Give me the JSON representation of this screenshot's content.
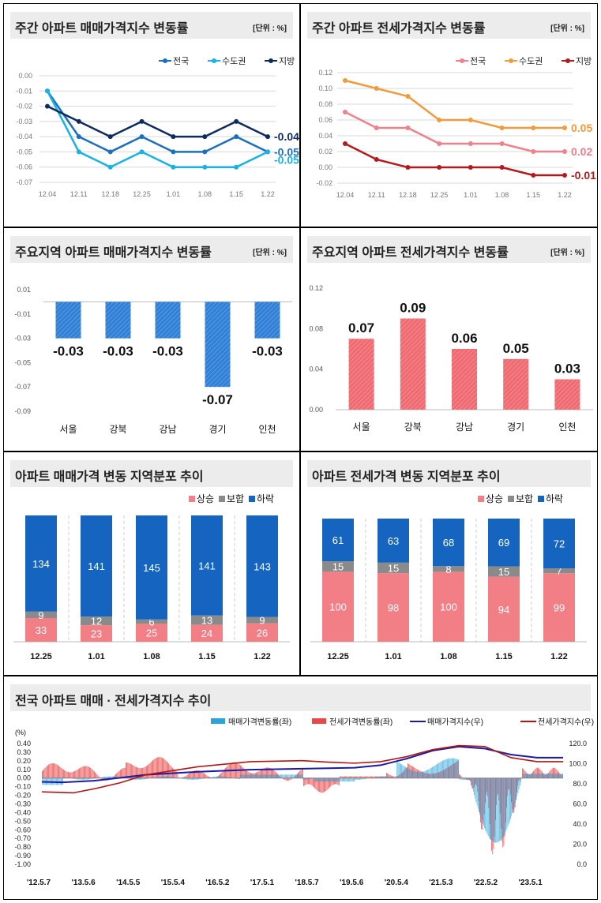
{
  "colors": {
    "national": "#1a6fbf",
    "capital": "#17b2e8",
    "local": "#0d2b5e",
    "j_national": "#f0808a",
    "j_capital": "#f39a3c",
    "j_local": "#b51a1a",
    "bar_blue": "#2f80d6",
    "bar_red": "#f06a72",
    "rise": "#f37f86",
    "flat": "#8a8a8a",
    "fall": "#1565c0"
  },
  "chart_data": [
    {
      "type": "line",
      "title": "주간 아파트 매매가격지수 변동률",
      "unit": "[단위 : %]",
      "categories": [
        "12.04",
        "12.11",
        "12.18",
        "12.25",
        "1.01",
        "1.08",
        "1.15",
        "1.22"
      ],
      "ylim": [
        -0.07,
        0.0
      ],
      "yticks": [
        "0.00",
        "-0.01",
        "-0.02",
        "-0.03",
        "-0.04",
        "-0.05",
        "-0.06",
        "-0.07"
      ],
      "series": [
        {
          "name": "전국",
          "values": [
            -0.01,
            -0.04,
            -0.05,
            -0.04,
            -0.05,
            -0.05,
            -0.04,
            -0.05
          ],
          "end_label": "-0.05"
        },
        {
          "name": "수도권",
          "values": [
            -0.01,
            -0.05,
            -0.06,
            -0.05,
            -0.06,
            -0.06,
            -0.06,
            -0.05
          ],
          "end_label": "-0.05"
        },
        {
          "name": "지방",
          "values": [
            -0.02,
            -0.03,
            -0.04,
            -0.03,
            -0.04,
            -0.04,
            -0.03,
            -0.04
          ],
          "end_label": "-0.04"
        }
      ]
    },
    {
      "type": "line",
      "title": "주간 아파트 전세가격지수 변동률",
      "unit": "[단위 : %]",
      "categories": [
        "12.04",
        "12.11",
        "12.18",
        "12.25",
        "1.01",
        "1.08",
        "1.15",
        "1.22"
      ],
      "ylim": [
        -0.02,
        0.12
      ],
      "yticks": [
        "0.12",
        "0.10",
        "0.08",
        "0.06",
        "0.04",
        "0.02",
        "0.00",
        "-0.02"
      ],
      "series": [
        {
          "name": "전국",
          "values": [
            0.07,
            0.05,
            0.05,
            0.03,
            0.03,
            0.03,
            0.02,
            0.02
          ],
          "end_label": "0.02"
        },
        {
          "name": "수도권",
          "values": [
            0.11,
            0.1,
            0.09,
            0.06,
            0.06,
            0.05,
            0.05,
            0.05
          ],
          "end_label": "0.05"
        },
        {
          "name": "지방",
          "values": [
            0.03,
            0.01,
            0.0,
            0.0,
            0.0,
            0.0,
            -0.01,
            -0.01
          ],
          "end_label": "-0.01"
        }
      ]
    },
    {
      "type": "bar",
      "title": "주요지역 아파트 매매가격지수 변동률",
      "unit": "[단위 : %]",
      "categories": [
        "서울",
        "강북",
        "강남",
        "경기",
        "인천"
      ],
      "values": [
        -0.03,
        -0.03,
        -0.03,
        -0.07,
        -0.03
      ],
      "labels": [
        "-0.03",
        "-0.03",
        "-0.03",
        "-0.07",
        "-0.03"
      ],
      "ylim": [
        -0.09,
        0.01
      ],
      "yticks": [
        "0.01",
        "-0.01",
        "-0.03",
        "-0.05",
        "-0.07",
        "-0.09"
      ]
    },
    {
      "type": "bar",
      "title": "주요지역 아파트 전세가격지수 변동률",
      "unit": "[단위 : %]",
      "categories": [
        "서울",
        "강북",
        "강남",
        "경기",
        "인천"
      ],
      "values": [
        0.07,
        0.09,
        0.06,
        0.05,
        0.03
      ],
      "labels": [
        "0.07",
        "0.09",
        "0.06",
        "0.05",
        "0.03"
      ],
      "ylim": [
        0.0,
        0.12
      ],
      "yticks": [
        "0.12",
        "0.08",
        "0.04",
        "0.00"
      ]
    },
    {
      "type": "bar",
      "stacked": true,
      "title": "아파트 매매가격 변동 지역분포 추이",
      "categories": [
        "12.25",
        "1.01",
        "1.08",
        "1.15",
        "1.22"
      ],
      "series": [
        {
          "name": "상승",
          "values": [
            33,
            23,
            25,
            24,
            26
          ]
        },
        {
          "name": "보합",
          "values": [
            9,
            12,
            6,
            13,
            9
          ]
        },
        {
          "name": "하락",
          "values": [
            134,
            141,
            145,
            141,
            143
          ]
        }
      ]
    },
    {
      "type": "bar",
      "stacked": true,
      "title": "아파트 전세가격 변동 지역분포 추이",
      "categories": [
        "12.25",
        "1.01",
        "1.08",
        "1.15",
        "1.22"
      ],
      "series": [
        {
          "name": "상승",
          "values": [
            100,
            98,
            100,
            94,
            99
          ]
        },
        {
          "name": "보합",
          "values": [
            15,
            15,
            8,
            15,
            7
          ]
        },
        {
          "name": "하락",
          "values": [
            61,
            63,
            68,
            69,
            72
          ]
        }
      ]
    },
    {
      "type": "line",
      "title": "전국 아파트 매매 · 전세가격지수 추이",
      "y_left_unit": "(%)",
      "y_left_ticks": [
        "0.40",
        "0.30",
        "0.20",
        "0.10",
        "0.00",
        "-0.10",
        "-0.20",
        "-0.30",
        "-0.40",
        "-0.50",
        "-0.60",
        "-0.70",
        "-0.80",
        "-0.90",
        "-1.00"
      ],
      "y_right_ticks": [
        "120.0",
        "100.0",
        "80.0",
        "60.0",
        "40.0",
        "20.0",
        "0.0"
      ],
      "x_ticks": [
        "'12.5.7",
        "'13.5.6",
        "'14.5.5",
        "'15.5.4",
        "'16.5.2",
        "'17.5.1",
        "'18.5.7",
        "'19.5.6",
        "'20.5.4",
        "'21.5.3",
        "'22.5.2",
        "'23.5.1"
      ],
      "legend": [
        "매매가격변동률(좌)",
        "전세가격변동률(좌)",
        "매매가격지수(우)",
        "전세가격지수(우)"
      ],
      "ylim_left": [
        -1.0,
        0.4
      ],
      "ylim_right": [
        0,
        120
      ],
      "series": [
        {
          "name": "매매가격지수(우)",
          "axis": "right",
          "x": [
            0,
            0.04,
            0.1,
            0.15,
            0.2,
            0.3,
            0.4,
            0.5,
            0.55,
            0.6,
            0.65,
            0.7,
            0.75,
            0.8,
            0.85,
            0.9,
            0.95,
            1.0
          ],
          "values": [
            82,
            81.5,
            83,
            86,
            89,
            92,
            94,
            95,
            95.5,
            96,
            98.5,
            105,
            113,
            117,
            115,
            109,
            106,
            106
          ]
        },
        {
          "name": "전세가격지수(우)",
          "axis": "right",
          "x": [
            0,
            0.06,
            0.1,
            0.15,
            0.2,
            0.3,
            0.4,
            0.5,
            0.55,
            0.6,
            0.65,
            0.7,
            0.75,
            0.8,
            0.85,
            0.9,
            0.95,
            1.0
          ],
          "values": [
            72,
            71,
            75,
            81,
            89,
            97,
            102,
            103,
            101.5,
            100.5,
            102,
            107,
            114,
            118,
            117,
            106,
            102,
            102
          ]
        }
      ]
    }
  ]
}
